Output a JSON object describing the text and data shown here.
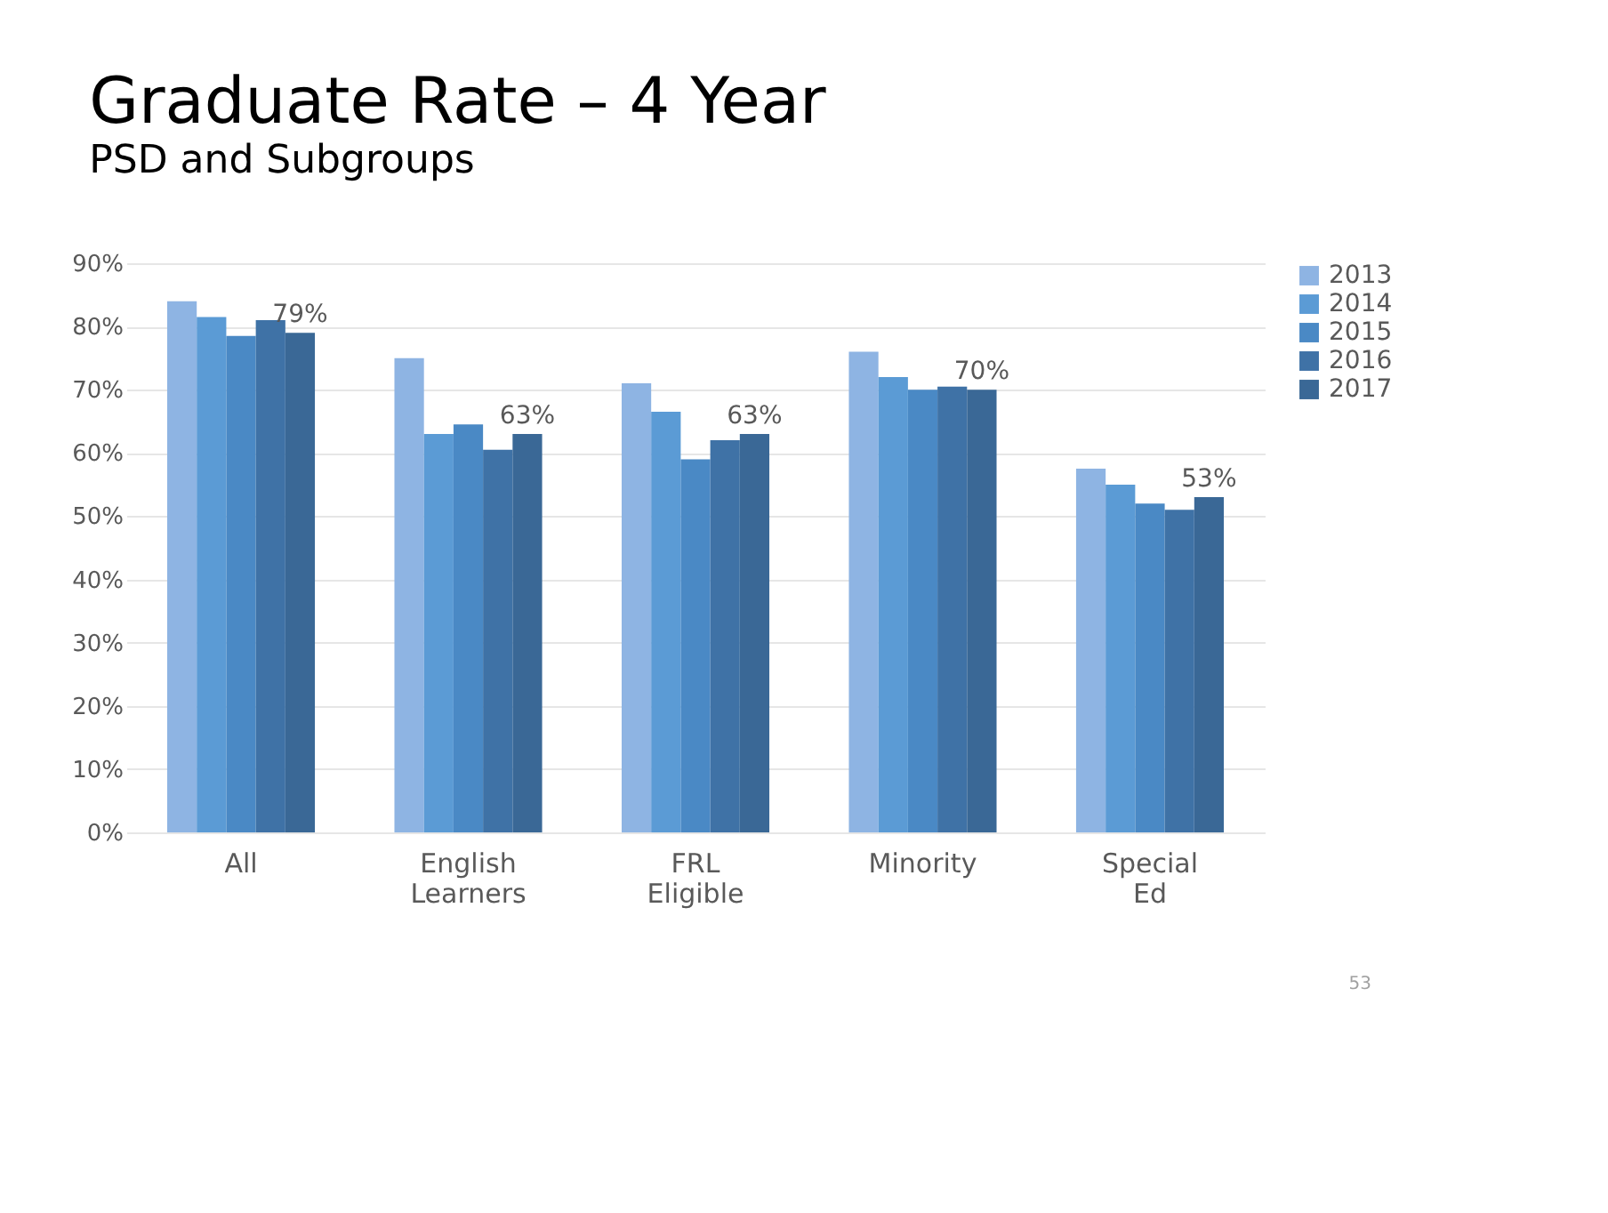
{
  "chart_data": {
    "type": "bar",
    "title": "Graduate Rate – 4 Year",
    "subtitle": "PSD and Subgroups",
    "categories": [
      "All",
      "English Learners",
      "FRL Eligible",
      "Minority",
      "Special Ed"
    ],
    "series": [
      {
        "name": "2013",
        "color": "#8eb4e3",
        "values": [
          84,
          75,
          71,
          76,
          57.5
        ]
      },
      {
        "name": "2014",
        "color": "#5b9bd5",
        "values": [
          81.5,
          63,
          66.5,
          72,
          55
        ]
      },
      {
        "name": "2015",
        "color": "#4a89c5",
        "values": [
          78.5,
          64.5,
          59,
          70,
          52
        ]
      },
      {
        "name": "2016",
        "color": "#3f72a6",
        "values": [
          81,
          60.5,
          62,
          70.5,
          51
        ]
      },
      {
        "name": "2017",
        "color": "#3a6896",
        "values": [
          79,
          63,
          63,
          70,
          53
        ],
        "value_labels": [
          "79%",
          "63%",
          "63%",
          "70%",
          "53%"
        ]
      }
    ],
    "ylim": [
      0,
      90
    ],
    "yticks": [
      {
        "value": 0,
        "label": "0%"
      },
      {
        "value": 10,
        "label": "10%"
      },
      {
        "value": 20,
        "label": "20%"
      },
      {
        "value": 30,
        "label": "30%"
      },
      {
        "value": 40,
        "label": "40%"
      },
      {
        "value": 50,
        "label": "50%"
      },
      {
        "value": 60,
        "label": "60%"
      },
      {
        "value": 70,
        "label": "70%"
      },
      {
        "value": 80,
        "label": "80%"
      },
      {
        "value": 90,
        "label": "90%"
      }
    ],
    "grid": "y",
    "legend": "right",
    "annotations": [
      "53"
    ]
  }
}
